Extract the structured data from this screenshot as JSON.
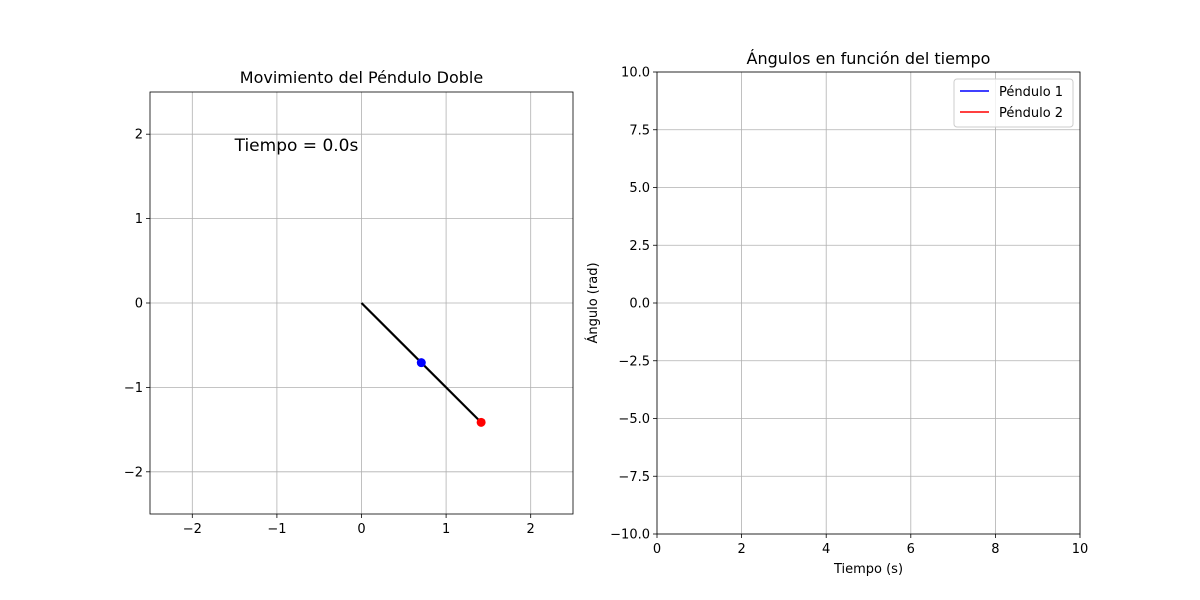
{
  "figure": {
    "background": "#ffffff"
  },
  "chart_data": [
    {
      "type": "line",
      "title": "Movimiento del Péndulo Doble",
      "xlabel": "",
      "ylabel": "",
      "xlim": [
        -2.5,
        2.5
      ],
      "ylim": [
        -2.5,
        2.5
      ],
      "xticks": [
        -2,
        -1,
        0,
        1,
        2
      ],
      "yticks": [
        -2,
        -1,
        0,
        1,
        2
      ],
      "xtick_labels": [
        "−2",
        "−1",
        "0",
        "1",
        "2"
      ],
      "ytick_labels": [
        "−2",
        "−1",
        "0",
        "1",
        "2"
      ],
      "grid": true,
      "annotation": {
        "text": "Tiempo = 0.0s",
        "x": -1.5,
        "y": 1.8
      },
      "rod": {
        "x": [
          0,
          0.707,
          1.414
        ],
        "y": [
          0,
          -0.707,
          -1.414
        ],
        "color": "#000000"
      },
      "bobs": [
        {
          "x": 0.707,
          "y": -0.707,
          "color": "#0000ff"
        },
        {
          "x": 1.414,
          "y": -1.414,
          "color": "#ff0000"
        }
      ]
    },
    {
      "type": "line",
      "title": "Ángulos en función del tiempo",
      "xlabel": "Tiempo (s)",
      "ylabel": "Ángulo (rad)",
      "xlim": [
        0,
        10
      ],
      "ylim": [
        -10,
        10
      ],
      "xticks": [
        0,
        2,
        4,
        6,
        8,
        10
      ],
      "yticks": [
        -10,
        -7.5,
        -5,
        -2.5,
        0,
        2.5,
        5,
        7.5,
        10
      ],
      "xtick_labels": [
        "0",
        "2",
        "4",
        "6",
        "8",
        "10"
      ],
      "ytick_labels": [
        "−10.0",
        "−7.5",
        "−5.0",
        "−2.5",
        "0.0",
        "2.5",
        "5.0",
        "7.5",
        "10.0"
      ],
      "grid": true,
      "legend_position": "top-right",
      "series": [
        {
          "name": "Péndulo 1",
          "color": "#0000ff",
          "x": [],
          "values": []
        },
        {
          "name": "Péndulo 2",
          "color": "#ff0000",
          "x": [],
          "values": []
        }
      ]
    }
  ]
}
